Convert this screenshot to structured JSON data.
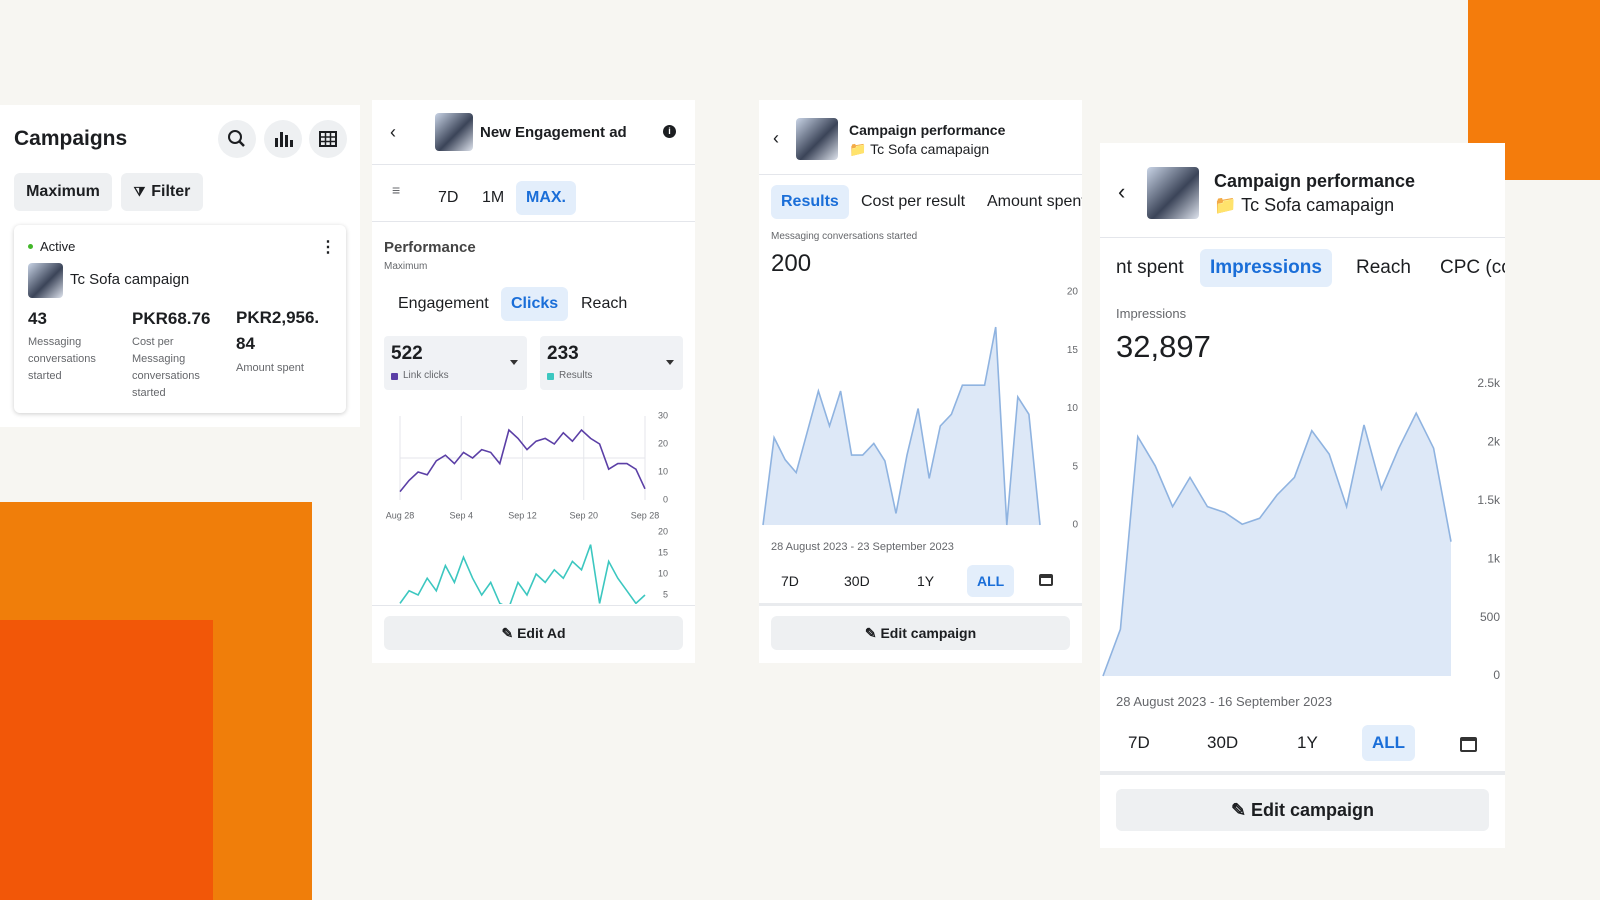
{
  "panels": [
    {
      "title": "Campaigns",
      "filters": [
        "Maximum",
        "Filter"
      ],
      "card": {
        "status": "Active",
        "name": "Tc Sofa campaign",
        "metrics": [
          {
            "value": "43",
            "label": "Messaging conversations started"
          },
          {
            "value": "PKR68.76",
            "label": "Cost per Messaging conversations started"
          },
          {
            "value": "PKR2,956.84",
            "label": "Amount spent"
          }
        ]
      }
    },
    {
      "title": "New Engagement ad",
      "time_tabs": [
        "7D",
        "1M",
        "MAX."
      ],
      "time_selected": 2,
      "section_title": "Performance",
      "section_subtitle": "Maximum",
      "metric_tabs": [
        "Engagement",
        "Clicks",
        "Reach"
      ],
      "metric_selected": 1,
      "stats": [
        {
          "value": 522,
          "label": "Link clicks",
          "color": "#5b3fa6"
        },
        {
          "value": 233,
          "label": "Results",
          "color": "#3cc7c0"
        }
      ],
      "charts": [
        {
          "type": "line",
          "color": "#5b3fa6",
          "fill": false,
          "values": [
            3,
            7,
            10,
            9,
            14,
            16,
            13,
            17,
            15,
            18,
            17,
            13,
            25,
            22,
            18,
            21,
            22,
            20,
            24,
            21,
            25,
            22,
            20,
            11,
            13,
            13,
            11,
            4
          ],
          "ylim": [
            0,
            30
          ],
          "yticks": [
            0,
            10,
            20,
            30
          ],
          "x_labels": [
            "Aug 28",
            "Sep 4",
            "Sep 12",
            "Sep 20",
            "Sep 28"
          ]
        },
        {
          "type": "line",
          "color": "#3cc7c0",
          "fill": false,
          "values": [
            3,
            6,
            5,
            9,
            6,
            12,
            8,
            14,
            9,
            5,
            8,
            3,
            2,
            8,
            5,
            10,
            8,
            11,
            9,
            13,
            11,
            17,
            3,
            13,
            9,
            6,
            3,
            5
          ],
          "ylim": [
            3,
            20
          ],
          "yticks": [
            5,
            10,
            15,
            20
          ]
        }
      ],
      "button": "Edit Ad"
    },
    {
      "title": "Campaign performance",
      "subtitle": "Tc Sofa camapaign",
      "metric_tabs": [
        "Results",
        "Cost per result",
        "Amount spent"
      ],
      "metric_selected": 0,
      "metric_label": "Messaging conversations started",
      "metric_value": "200",
      "charts": [
        {
          "type": "area",
          "color": "#8fb3e0",
          "values": [
            0,
            7.5,
            5.6,
            4.5,
            8,
            11.5,
            8.5,
            11.5,
            6,
            6,
            7,
            5.5,
            1,
            6,
            10,
            4,
            8.5,
            9.5,
            12,
            12,
            12,
            17,
            0,
            11,
            9.5,
            0
          ],
          "ylim": [
            0,
            20
          ],
          "yticks": [
            0,
            5,
            10,
            15,
            20
          ]
        }
      ],
      "date_range": "28 August 2023 - 23 September 2023",
      "range_tabs": [
        "7D",
        "30D",
        "1Y",
        "ALL"
      ],
      "range_selected": 3,
      "button": "Edit campaign"
    },
    {
      "title": "Campaign performance",
      "subtitle": "Tc Sofa camapaign",
      "metric_tabs": [
        "nt spent",
        "Impressions",
        "Reach",
        "CPC (co"
      ],
      "metric_selected": 1,
      "metric_label": "Impressions",
      "metric_value": "32,897",
      "charts": [
        {
          "type": "area",
          "color": "#8fb3e0",
          "values": [
            0,
            400,
            2050,
            1800,
            1450,
            1700,
            1450,
            1400,
            1300,
            1350,
            1550,
            1700,
            2100,
            1900,
            1450,
            2150,
            1600,
            1950,
            2250,
            1950,
            1150
          ],
          "ylim": [
            0,
            2500
          ],
          "yticks": [
            0,
            500,
            {
              "value": 1000,
              "label": "1k"
            },
            {
              "value": 1500,
              "label": "1.5k"
            },
            {
              "value": 2000,
              "label": "2k"
            },
            {
              "value": 2500,
              "label": "2.5k"
            }
          ]
        }
      ],
      "date_range": "28 August 2023 - 16 September 2023",
      "range_tabs": [
        "7D",
        "30D",
        "1Y",
        "ALL"
      ],
      "range_selected": 3,
      "button": "Edit campaign"
    }
  ]
}
